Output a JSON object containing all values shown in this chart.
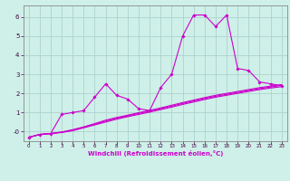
{
  "xlabel": "Windchill (Refroidissement éolien,°C)",
  "ylabel": "",
  "background_color": "#cef0e8",
  "line_color": "#cc00cc",
  "grid_color": "#aacccc",
  "x_values": [
    0,
    1,
    2,
    3,
    4,
    5,
    6,
    7,
    8,
    9,
    10,
    11,
    12,
    13,
    14,
    15,
    16,
    17,
    18,
    19,
    20,
    21,
    22,
    23
  ],
  "line1": [
    -0.3,
    -0.15,
    -0.1,
    0.9,
    1.0,
    1.1,
    1.8,
    2.5,
    1.9,
    1.7,
    1.2,
    1.1,
    2.3,
    3.0,
    5.0,
    6.1,
    6.1,
    5.5,
    6.1,
    3.3,
    3.2,
    2.6,
    2.5,
    2.4
  ],
  "line2": [
    -0.3,
    -0.15,
    -0.1,
    -0.05,
    0.05,
    0.2,
    0.35,
    0.5,
    0.65,
    0.78,
    0.9,
    1.02,
    1.15,
    1.28,
    1.42,
    1.55,
    1.68,
    1.8,
    1.9,
    2.0,
    2.1,
    2.2,
    2.28,
    2.35
  ],
  "line3": [
    -0.3,
    -0.15,
    -0.1,
    -0.03,
    0.08,
    0.22,
    0.38,
    0.55,
    0.7,
    0.82,
    0.95,
    1.07,
    1.2,
    1.33,
    1.47,
    1.6,
    1.73,
    1.85,
    1.95,
    2.05,
    2.15,
    2.25,
    2.33,
    2.42
  ],
  "line4": [
    -0.3,
    -0.15,
    -0.1,
    -0.02,
    0.1,
    0.25,
    0.42,
    0.6,
    0.74,
    0.86,
    0.99,
    1.11,
    1.24,
    1.38,
    1.52,
    1.65,
    1.78,
    1.9,
    2.0,
    2.1,
    2.2,
    2.3,
    2.38,
    2.46
  ],
  "ylim": [
    -0.5,
    6.6
  ],
  "xlim": [
    -0.5,
    23.5
  ],
  "yticks": [
    0,
    1,
    2,
    3,
    4,
    5,
    6
  ],
  "xticks": [
    0,
    1,
    2,
    3,
    4,
    5,
    6,
    7,
    8,
    9,
    10,
    11,
    12,
    13,
    14,
    15,
    16,
    17,
    18,
    19,
    20,
    21,
    22,
    23
  ],
  "figsize": [
    3.2,
    2.0
  ],
  "dpi": 100
}
